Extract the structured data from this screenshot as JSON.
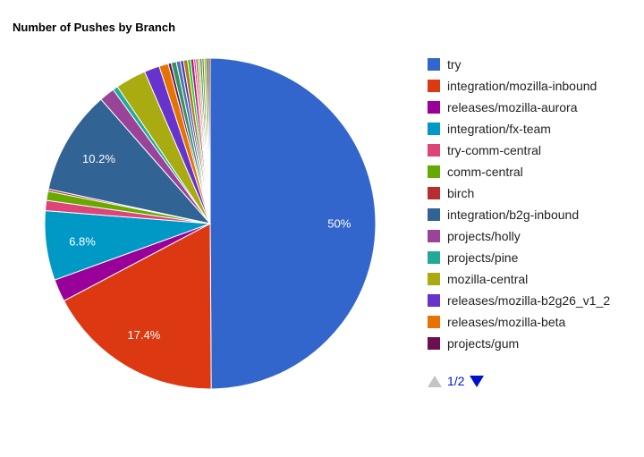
{
  "chart_data": {
    "type": "pie",
    "title": "Number of Pushes by Branch",
    "legend_position": "right",
    "slices": [
      {
        "name": "try",
        "value": 50.0,
        "color": "#3366cc",
        "label": "50%"
      },
      {
        "name": "integration/mozilla-inbound",
        "value": 17.4,
        "color": "#dc3912",
        "label": "17.4%"
      },
      {
        "name": "releases/mozilla-aurora",
        "value": 2.2,
        "color": "#990099"
      },
      {
        "name": "integration/fx-team",
        "value": 6.8,
        "color": "#0099c6",
        "label": "6.8%"
      },
      {
        "name": "try-comm-central",
        "value": 1.0,
        "color": "#dd4477"
      },
      {
        "name": "comm-central",
        "value": 0.9,
        "color": "#66aa00"
      },
      {
        "name": "birch",
        "value": 0.2,
        "color": "#b82e2e"
      },
      {
        "name": "integration/b2g-inbound",
        "value": 10.2,
        "color": "#316395",
        "label": "10.2%"
      },
      {
        "name": "projects/holly",
        "value": 1.5,
        "color": "#994499"
      },
      {
        "name": "projects/pine",
        "value": 0.5,
        "color": "#22aa99"
      },
      {
        "name": "mozilla-central",
        "value": 3.0,
        "color": "#aaaa11"
      },
      {
        "name": "releases/mozilla-b2g26_v1_2",
        "value": 1.5,
        "color": "#6633cc"
      },
      {
        "name": "releases/mozilla-beta",
        "value": 0.9,
        "color": "#e67300"
      },
      {
        "name": "projects/gum",
        "value": 0.3,
        "color": "#6b0f50"
      },
      {
        "value": 0.5,
        "color": "#329262"
      },
      {
        "value": 0.4,
        "color": "#5574a6"
      },
      {
        "value": 0.3,
        "color": "#3b3eac"
      },
      {
        "value": 0.4,
        "color": "#b77322"
      },
      {
        "value": 0.3,
        "color": "#16d620"
      },
      {
        "value": 0.3,
        "color": "#b91383"
      },
      {
        "value": 0.2,
        "color": "#f4359e"
      },
      {
        "value": 0.2,
        "color": "#9c5935"
      },
      {
        "value": 0.2,
        "color": "#a9c413"
      },
      {
        "value": 0.2,
        "color": "#2a778d"
      },
      {
        "value": 0.2,
        "color": "#668d1c"
      },
      {
        "value": 0.2,
        "color": "#bea413"
      },
      {
        "value": 0.2,
        "color": "#0c5922"
      },
      {
        "value": 0.2,
        "color": "#743411"
      }
    ]
  },
  "legend_pager": {
    "page_text": "1/2",
    "up_icon": "triangle-up-icon",
    "down_icon": "triangle-down-icon",
    "active_color": "#0011cc",
    "disabled_color": "#c4c4c4"
  }
}
